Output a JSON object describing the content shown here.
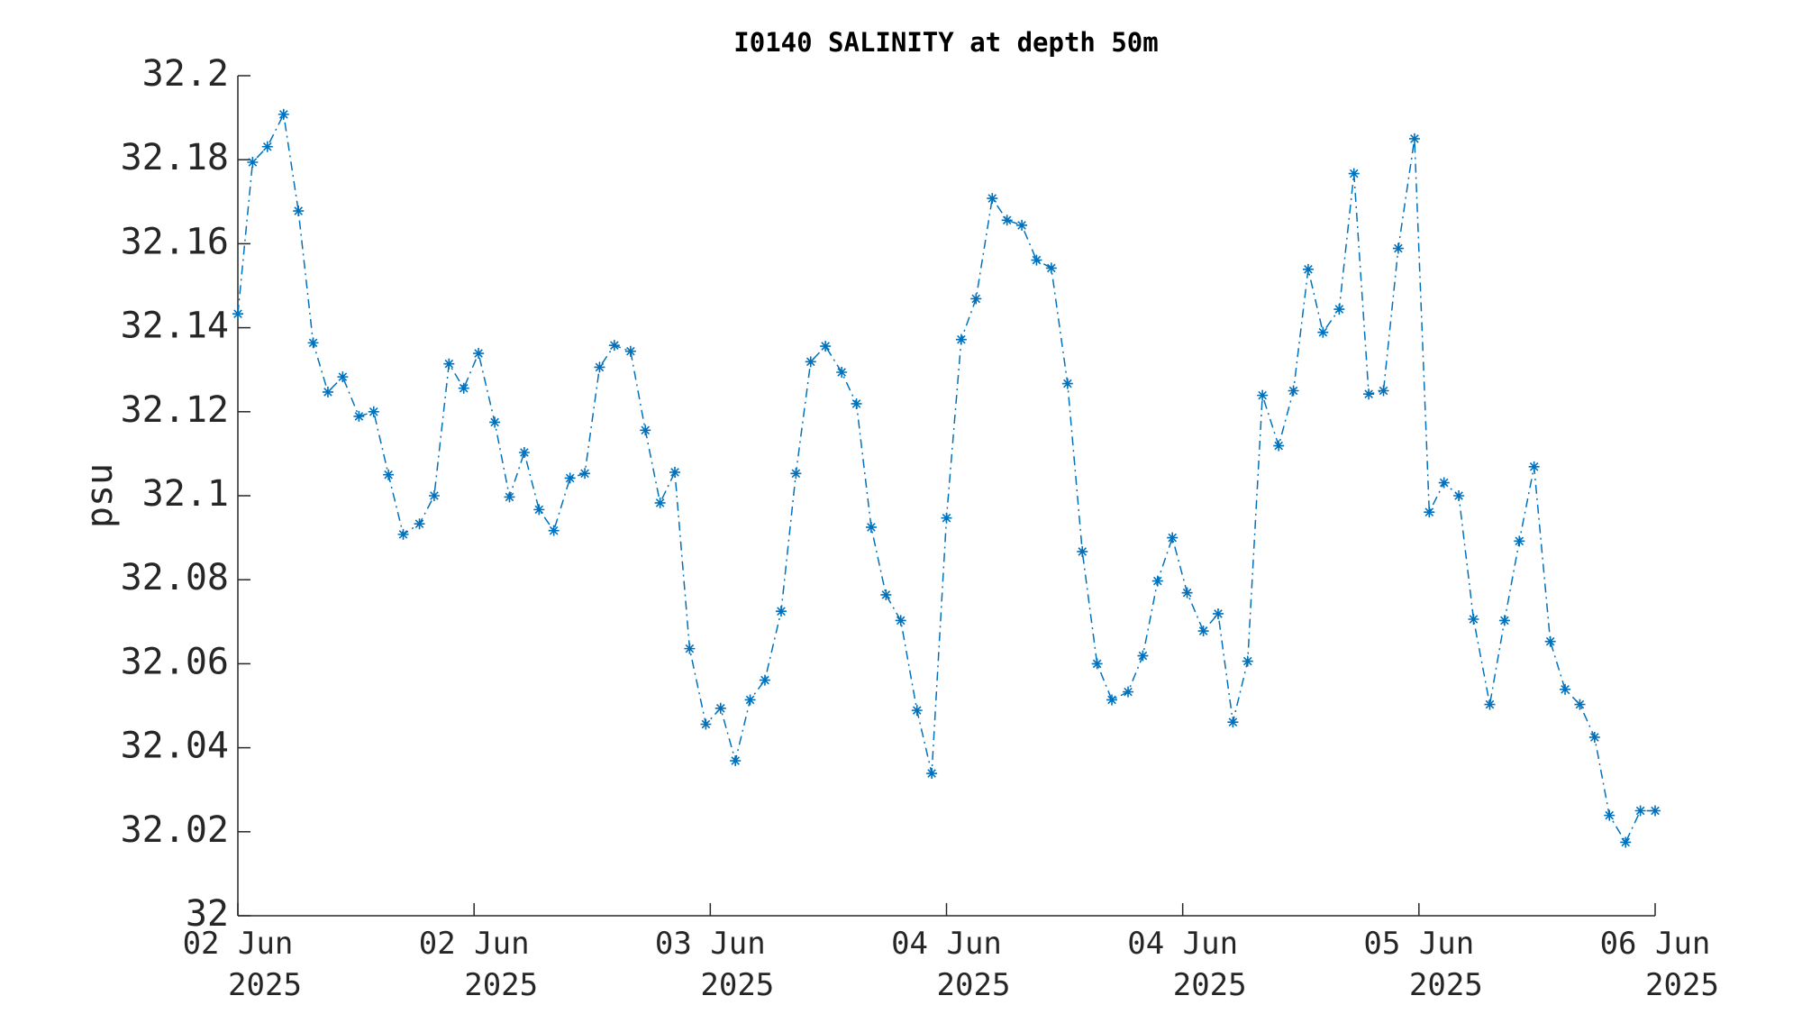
{
  "chart_data": {
    "type": "line",
    "title": "I0140 SALINITY at depth 50m",
    "y_label": "psu",
    "x": [
      0,
      1.0,
      2.0,
      3.1,
      4.1,
      5.1,
      6.1,
      7.1,
      8.2,
      9.2,
      10.2,
      11.2,
      12.3,
      13.3,
      14.3,
      15.3,
      16.3,
      17.4,
      18.4,
      19.4,
      20.4,
      21.4,
      22.5,
      23.5,
      24.5,
      25.5,
      26.6,
      27.6,
      28.6,
      29.6,
      30.6,
      31.7,
      32.7,
      33.7,
      34.7,
      35.7,
      36.8,
      37.8,
      38.8,
      39.8,
      40.9,
      41.9,
      42.9,
      43.9,
      44.9,
      46.0,
      47.0,
      48.0,
      49.0,
      50.0,
      51.1,
      52.1,
      53.1,
      54.1,
      55.1,
      56.2,
      57.2,
      58.2,
      59.2,
      60.3,
      61.3,
      62.3,
      63.3,
      64.3,
      65.4,
      66.4,
      67.4,
      68.4,
      69.4,
      70.5,
      71.5,
      72.5,
      73.5,
      74.6,
      75.6,
      76.6,
      77.6,
      78.6,
      79.7,
      80.7,
      81.7,
      82.7,
      83.7,
      84.8,
      85.8,
      86.8,
      87.8,
      88.9,
      89.9,
      90.9,
      91.9,
      92.9,
      94.0,
      95.0,
      96.0
    ],
    "series": [
      {
        "color": "#0072bd",
        "values": [
          32.1433,
          32.1794,
          32.1831,
          32.1908,
          32.1678,
          32.1364,
          32.1247,
          32.1283,
          32.1189,
          32.12,
          32.105,
          32.0908,
          32.0933,
          32.1,
          32.1314,
          32.1256,
          32.1339,
          32.1175,
          32.0997,
          32.1103,
          32.0967,
          32.0917,
          32.1042,
          32.1053,
          32.1306,
          32.1358,
          32.1344,
          32.1156,
          32.0983,
          32.1056,
          32.0636,
          32.0456,
          32.0494,
          32.0369,
          32.0514,
          32.0561,
          32.0725,
          32.1053,
          32.1319,
          32.1356,
          32.1294,
          32.1219,
          32.0925,
          32.0764,
          32.0703,
          32.0489,
          32.0339,
          32.0947,
          32.1372,
          32.1469,
          32.1708,
          32.1656,
          32.1644,
          32.1561,
          32.1542,
          32.1267,
          32.0867,
          32.06,
          32.0514,
          32.0533,
          32.0619,
          32.0797,
          32.09,
          32.0769,
          32.0678,
          32.0719,
          32.0461,
          32.0606,
          32.1239,
          32.1119,
          32.125,
          32.1539,
          32.1389,
          32.1444,
          32.1767,
          32.1242,
          32.125,
          32.1589,
          32.185,
          32.0961,
          32.1031,
          32.1,
          32.0706,
          32.0503,
          32.0703,
          32.0892,
          32.1069,
          32.0653,
          32.0539,
          32.0503,
          32.0425,
          32.0239,
          32.0175,
          32.025,
          32.025
        ]
      }
    ],
    "xlim": [
      0,
      96
    ],
    "xticks": [
      {
        "value": 0,
        "label": "02 Jun\n2025"
      },
      {
        "value": 16,
        "label": "02 Jun\n2025"
      },
      {
        "value": 32,
        "label": "03 Jun\n2025"
      },
      {
        "value": 48,
        "label": "04 Jun\n2025"
      },
      {
        "value": 64,
        "label": "04 Jun\n2025"
      },
      {
        "value": 80,
        "label": "05 Jun\n2025"
      },
      {
        "value": 96,
        "label": "06 Jun\n2025"
      }
    ],
    "ylim": [
      32,
      32.2
    ],
    "yticks": [
      32,
      32.02,
      32.04,
      32.06,
      32.08,
      32.1,
      32.12,
      32.14,
      32.16,
      32.18,
      32.2
    ],
    "line_style": "dash-dot",
    "marker": "asterisk"
  }
}
